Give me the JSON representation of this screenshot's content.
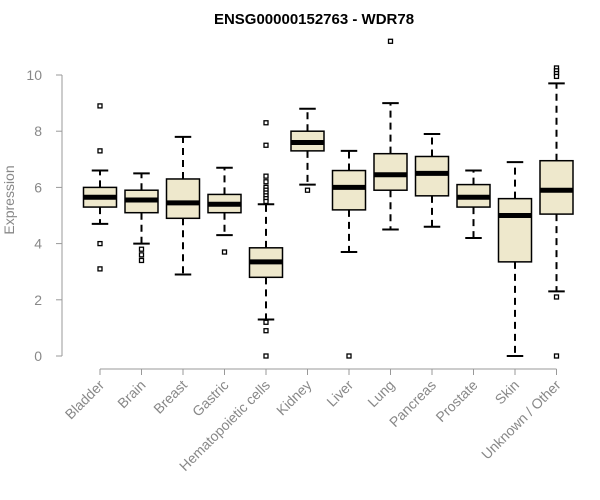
{
  "chart_data": {
    "type": "boxplot",
    "title": "ENSG00000152763 - WDR78",
    "xlabel": "",
    "ylabel": "Expression",
    "ylim": [
      0,
      11.2
    ],
    "yticks": [
      0,
      2,
      4,
      6,
      8,
      10
    ],
    "grid": false,
    "colors": {
      "box_fill": "#eee8cc",
      "stroke": "#000000",
      "axis_text": "#888888",
      "axis_line": "#999999"
    },
    "categories": [
      "Bladder",
      "Brain",
      "Breast",
      "Gastric",
      "Hematopoietic cells",
      "Kidney",
      "Liver",
      "Lung",
      "Pancreas",
      "Prostate",
      "Skin",
      "Unknown / Other"
    ],
    "boxes": [
      {
        "label": "Bladder",
        "whisker_low": 4.7,
        "q1": 5.3,
        "median": 5.65,
        "q3": 6.0,
        "whisker_high": 6.6,
        "outliers": [
          8.9,
          7.3,
          4.0,
          3.1
        ]
      },
      {
        "label": "Brain",
        "whisker_low": 4.0,
        "q1": 5.1,
        "median": 5.55,
        "q3": 5.9,
        "whisker_high": 6.5,
        "outliers": [
          3.8,
          3.6,
          3.4
        ]
      },
      {
        "label": "Breast",
        "whisker_low": 2.9,
        "q1": 4.9,
        "median": 5.45,
        "q3": 6.3,
        "whisker_high": 7.8,
        "outliers": []
      },
      {
        "label": "Gastric",
        "whisker_low": 4.3,
        "q1": 5.1,
        "median": 5.4,
        "q3": 5.75,
        "whisker_high": 6.7,
        "outliers": [
          3.7
        ]
      },
      {
        "label": "Hematopoietic cells",
        "whisker_low": 1.3,
        "q1": 2.8,
        "median": 3.35,
        "q3": 3.85,
        "whisker_high": 5.4,
        "outliers": [
          8.3,
          7.5,
          6.4,
          6.2,
          6.0,
          5.9,
          5.8,
          5.7,
          5.6,
          5.5,
          1.2,
          0.9,
          0.0
        ]
      },
      {
        "label": "Kidney",
        "whisker_low": 6.1,
        "q1": 7.3,
        "median": 7.6,
        "q3": 8.0,
        "whisker_high": 8.8,
        "outliers": [
          5.9
        ]
      },
      {
        "label": "Liver",
        "whisker_low": 3.7,
        "q1": 5.2,
        "median": 6.0,
        "q3": 6.6,
        "whisker_high": 7.3,
        "outliers": [
          0.0
        ]
      },
      {
        "label": "Lung",
        "whisker_low": 4.5,
        "q1": 5.9,
        "median": 6.45,
        "q3": 7.2,
        "whisker_high": 9.0,
        "outliers": [
          11.2
        ]
      },
      {
        "label": "Pancreas",
        "whisker_low": 4.6,
        "q1": 5.7,
        "median": 6.5,
        "q3": 7.1,
        "whisker_high": 7.9,
        "outliers": []
      },
      {
        "label": "Prostate",
        "whisker_low": 4.2,
        "q1": 5.3,
        "median": 5.65,
        "q3": 6.1,
        "whisker_high": 6.6,
        "outliers": []
      },
      {
        "label": "Skin",
        "whisker_low": 0.0,
        "q1": 3.35,
        "median": 5.0,
        "q3": 5.6,
        "whisker_high": 6.9,
        "outliers": []
      },
      {
        "label": "Unknown / Other",
        "whisker_low": 2.3,
        "q1": 5.05,
        "median": 5.9,
        "q3": 6.95,
        "whisker_high": 9.7,
        "outliers": [
          10.25,
          10.15,
          10.05,
          9.95,
          2.1,
          0.0
        ]
      }
    ]
  }
}
